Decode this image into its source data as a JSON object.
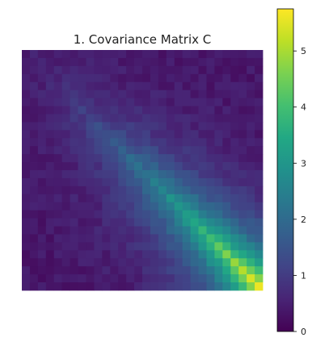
{
  "chart_data": {
    "type": "heatmap",
    "title": "1. Covariance Matrix C",
    "xlabel": "",
    "ylabel": "",
    "n": 30,
    "colormap": "viridis",
    "colorbar": {
      "vmin": 0,
      "vmax": 5.75,
      "ticks": [
        0,
        1,
        2,
        3,
        4,
        5
      ],
      "tick_labels": [
        "0",
        "1",
        "2",
        "3",
        "4",
        "5"
      ]
    },
    "matrix_model": {
      "description_note": "values estimated from the colormap; diagonal grows from ~0.5 at top-left to ~5.6 at bottom-right, decaying away from the diagonal",
      "diag_start": 0.5,
      "diag_end": 5.6,
      "decay_length": 5.5,
      "baseline": 0.35
    }
  }
}
